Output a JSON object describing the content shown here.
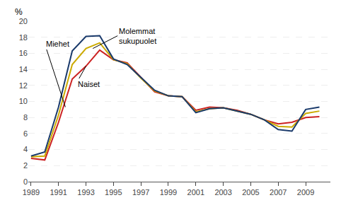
{
  "chart_data": {
    "type": "line",
    "ylabel": "%",
    "x": [
      1989,
      1990,
      1991,
      1992,
      1993,
      1994,
      1995,
      1996,
      1997,
      1998,
      1999,
      2000,
      2001,
      2002,
      2003,
      2004,
      2005,
      2006,
      2007,
      2008,
      2009,
      2010
    ],
    "series": [
      {
        "color": "#cc2222",
        "values": [
          2.9,
          2.7,
          7.4,
          12.8,
          14.4,
          16.4,
          15.2,
          14.8,
          13.0,
          11.2,
          10.7,
          10.6,
          8.9,
          9.3,
          9.2,
          8.9,
          8.4,
          7.7,
          7.2,
          7.4,
          8.0,
          8.1
        ]
      },
      {
        "color": "#ccaa00",
        "values": [
          3.1,
          3.2,
          8.3,
          14.6,
          16.6,
          17.3,
          15.2,
          14.7,
          12.9,
          11.3,
          10.7,
          10.6,
          8.7,
          9.1,
          9.2,
          8.8,
          8.4,
          7.7,
          6.9,
          6.8,
          8.5,
          8.8
        ]
      },
      {
        "color": "#1a3a6b",
        "values": [
          3.2,
          3.7,
          9.3,
          16.3,
          18.1,
          18.2,
          15.3,
          14.6,
          13.0,
          11.4,
          10.7,
          10.6,
          8.6,
          9.1,
          9.2,
          8.8,
          8.4,
          7.7,
          6.5,
          6.3,
          9.0,
          9.3
        ]
      }
    ],
    "xlim": [
      1988.8,
      2010.8
    ],
    "xticks": [
      1989,
      1991,
      1993,
      1995,
      1997,
      1999,
      2001,
      2003,
      2005,
      2007,
      2009
    ],
    "ylim": [
      0,
      20
    ],
    "yticks": [
      0,
      2,
      4,
      6,
      8,
      10,
      12,
      14,
      16,
      18,
      20
    ],
    "grid": true,
    "annotations": [
      {
        "text": "Miehet",
        "x": 1991.5,
        "y": 9.3
      },
      {
        "text": "Naiset",
        "x": 1993.0,
        "y": 14.4
      },
      {
        "text": "Molemmat\nsukupuolet",
        "x": 1993.5,
        "y": 16.6
      }
    ]
  }
}
